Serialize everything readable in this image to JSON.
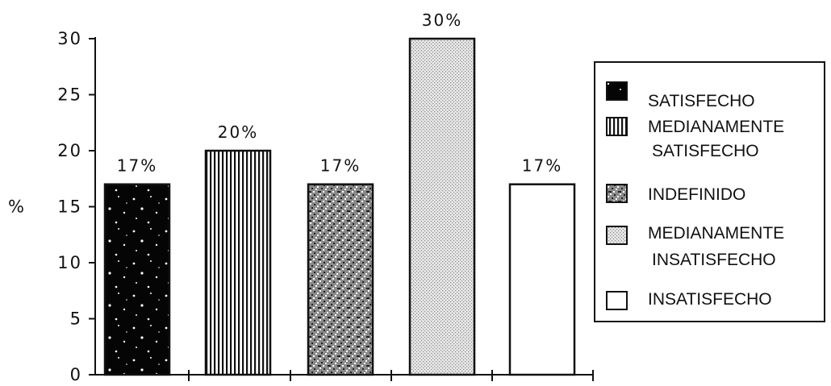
{
  "chart_data": {
    "type": "bar",
    "title": "",
    "xlabel": "",
    "ylabel": "%",
    "ylim": [
      0,
      30
    ],
    "yticks": [
      "0",
      "5",
      "10",
      "15",
      "20",
      "25",
      "30"
    ],
    "grid": false,
    "legend_position": "right",
    "categories": [
      "SATISFECHO",
      "MEDIANAMENTE SATISFECHO",
      "INDEFINIDO",
      "MEDIANAMENTE INSATISFECHO",
      "INSATISFECHO"
    ],
    "values": [
      17,
      20,
      17,
      30,
      17
    ],
    "data_labels": [
      "17%",
      "20%",
      "17%",
      "30%",
      "17%"
    ],
    "legend": [
      {
        "lines": [
          "SATISFECHO"
        ],
        "pattern": "speckled-black"
      },
      {
        "lines": [
          "MEDIANAMENTE",
          "SATISFECHO"
        ],
        "pattern": "vertical-stripes"
      },
      {
        "lines": [
          "INDEFINIDO"
        ],
        "pattern": "dense-noise"
      },
      {
        "lines": [
          "MEDIANAMENTE",
          "INSATISFECHO"
        ],
        "pattern": "light-dots"
      },
      {
        "lines": [
          "INSATISFECHO"
        ],
        "pattern": "white"
      }
    ]
  }
}
